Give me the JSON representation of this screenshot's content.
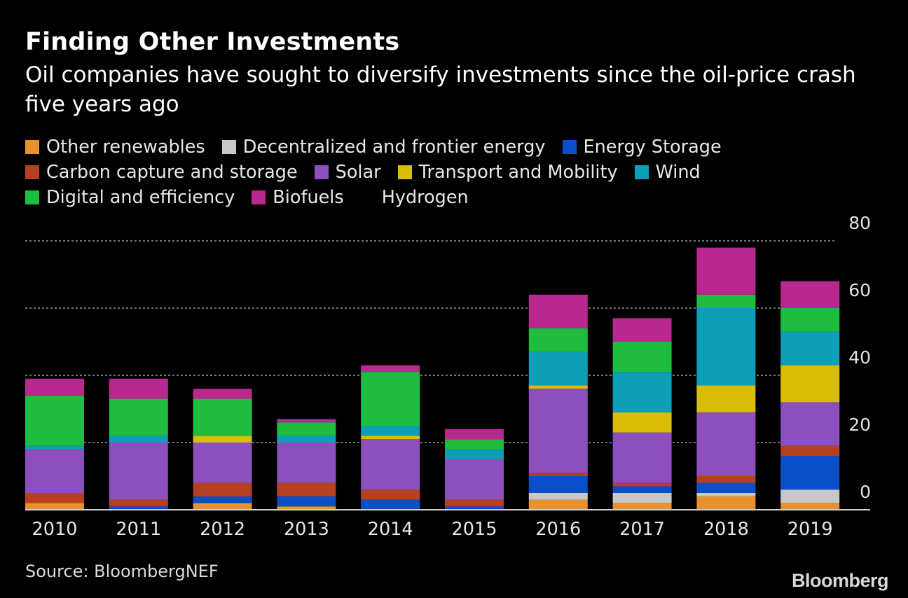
{
  "header": {
    "title": "Finding Other Investments",
    "subtitle": "Oil companies have sought to diversify investments since the oil-price crash five years ago"
  },
  "footer": {
    "source": "Source: BloombergNEF",
    "brand": "Bloomberg"
  },
  "chart_data": {
    "type": "bar",
    "stacked": true,
    "categories": [
      "2010",
      "2011",
      "2012",
      "2013",
      "2014",
      "2015",
      "2016",
      "2017",
      "2018",
      "2019"
    ],
    "ylim": [
      0,
      80
    ],
    "yticks": [
      0,
      20,
      40,
      60,
      80
    ],
    "grid": true,
    "y_axis_position": "right",
    "legend_position": "top",
    "series": [
      {
        "name": "Other renewables",
        "color": "#e8912e",
        "values": [
          2,
          0,
          2,
          1,
          0,
          0,
          3,
          2,
          4,
          2
        ]
      },
      {
        "name": "Decentralized and frontier energy",
        "color": "#c8c8c8",
        "values": [
          0,
          0,
          0,
          0,
          0,
          0,
          2,
          3,
          1,
          4
        ]
      },
      {
        "name": "Energy Storage",
        "color": "#0b4fc8",
        "values": [
          0,
          1,
          2,
          3,
          3,
          1,
          5,
          2,
          3,
          10
        ]
      },
      {
        "name": "Carbon capture and storage",
        "color": "#b7411f",
        "values": [
          3,
          2,
          4,
          4,
          3,
          2,
          1,
          1,
          2,
          3
        ]
      },
      {
        "name": "Solar",
        "color": "#8d4fbd",
        "values": [
          13,
          17,
          12,
          12,
          15,
          12,
          25,
          15,
          19,
          13
        ]
      },
      {
        "name": "Transport and Mobility",
        "color": "#d8bc06",
        "values": [
          0,
          0,
          2,
          0,
          1,
          0,
          1,
          6,
          8,
          11
        ]
      },
      {
        "name": "Wind",
        "color": "#0e9fb8",
        "values": [
          1,
          2,
          0,
          2,
          3,
          3,
          10,
          12,
          23,
          10
        ]
      },
      {
        "name": "Digital and efficiency",
        "color": "#1fbd3d",
        "values": [
          15,
          11,
          11,
          4,
          16,
          3,
          7,
          9,
          4,
          7
        ]
      },
      {
        "name": "Biofuels",
        "color": "#b8288e",
        "values": [
          5,
          6,
          3,
          1,
          2,
          3,
          10,
          7,
          14,
          8
        ]
      },
      {
        "name": "Hydrogen",
        "color": "#000000",
        "values": [
          0,
          0,
          0,
          0,
          0,
          0,
          0,
          0,
          0,
          0
        ]
      }
    ]
  }
}
